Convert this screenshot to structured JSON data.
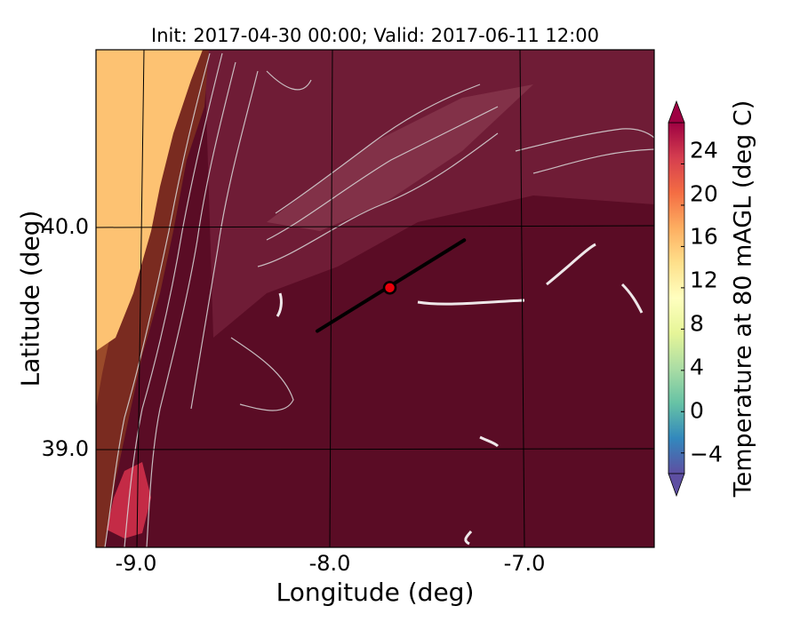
{
  "title": "Init: 2017-04-30 00:00; Valid: 2017-06-11 12:00",
  "map": {
    "xlabel": "Longitude (deg)",
    "ylabel": "Latitude (deg)",
    "x_ticks": [
      "-9.0",
      "-8.0",
      "-7.0"
    ],
    "y_ticks": [
      "40.0",
      "39.0"
    ],
    "x_range": [
      -9.25,
      -6.4
    ],
    "y_range": [
      38.5,
      40.8
    ],
    "gridlines": true,
    "transect": {
      "start": {
        "lon": -8.12,
        "lat": 39.5
      },
      "end": {
        "lon": -7.37,
        "lat": 39.92
      },
      "marker": {
        "lon": -7.75,
        "lat": 39.7
      },
      "marker_color": "#e8000b",
      "line_color": "#000000"
    }
  },
  "colorbar": {
    "label": "Temperature at 80 mAGL (deg C)",
    "ticks": [
      "24",
      "20",
      "16",
      "12",
      "8",
      "4",
      "0",
      "−4"
    ],
    "tick_values": [
      24,
      20,
      16,
      12,
      8,
      4,
      0,
      -4
    ],
    "range": [
      -6,
      28
    ],
    "colormap": "Spectral_r",
    "extend": "both"
  },
  "colors": {
    "coastal_warm": "#fdc272",
    "inland_hot": "#5c0a23",
    "contour_line": "#d9d9d9"
  }
}
